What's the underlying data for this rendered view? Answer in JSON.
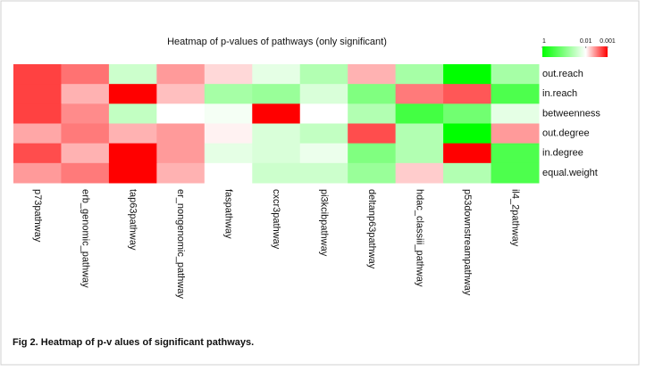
{
  "chart_data": {
    "type": "heatmap",
    "title": "Heatmap of p-values of pathways (only significant)",
    "caption": "Fig 2. Heatmap of p-v alues of significant pathways.",
    "categories": [
      "p73pathway",
      "erb_genomic_pathway",
      "tap63pathway",
      "er_nongenomic_pathway",
      "faspathway",
      "cxcr3pathway",
      "pi3kcibpathway",
      "deltanp63pathway",
      "hdac_classiii_pathway",
      "p53downstreampathway",
      "il4_2pathway"
    ],
    "rows": [
      "out.reach",
      "in.reach",
      "betweenness",
      "out.degree",
      "in.degree",
      "equal.weight"
    ],
    "values": [
      [
        0.0018,
        0.0028,
        0.025,
        0.004,
        0.007,
        0.016,
        0.04,
        0.005,
        0.05,
        1,
        0.05
      ],
      [
        0.0018,
        0.005,
        0.001,
        0.0056,
        0.05,
        0.063,
        0.02,
        0.1,
        0.003,
        0.0022,
        0.25
      ],
      [
        0.0018,
        0.0035,
        0.03,
        0.01,
        0.012,
        0.001,
        0.01,
        0.04,
        0.3,
        0.13,
        0.016
      ],
      [
        0.0045,
        0.003,
        0.005,
        0.004,
        0.0089,
        0.02,
        0.03,
        0.002,
        0.04,
        1,
        0.004
      ],
      [
        0.002,
        0.005,
        0.001,
        0.004,
        0.016,
        0.02,
        0.014,
        0.1,
        0.04,
        0.001,
        0.25
      ],
      [
        0.004,
        0.003,
        0.001,
        0.005,
        0.01,
        0.025,
        0.025,
        0.063,
        0.0063,
        0.04,
        0.25
      ]
    ],
    "colorbar_ticks": [
      1,
      0.01,
      0.001
    ],
    "colors": [
      "#00ff00",
      "#ffffff",
      "#ff0000"
    ],
    "log_scale": true
  }
}
